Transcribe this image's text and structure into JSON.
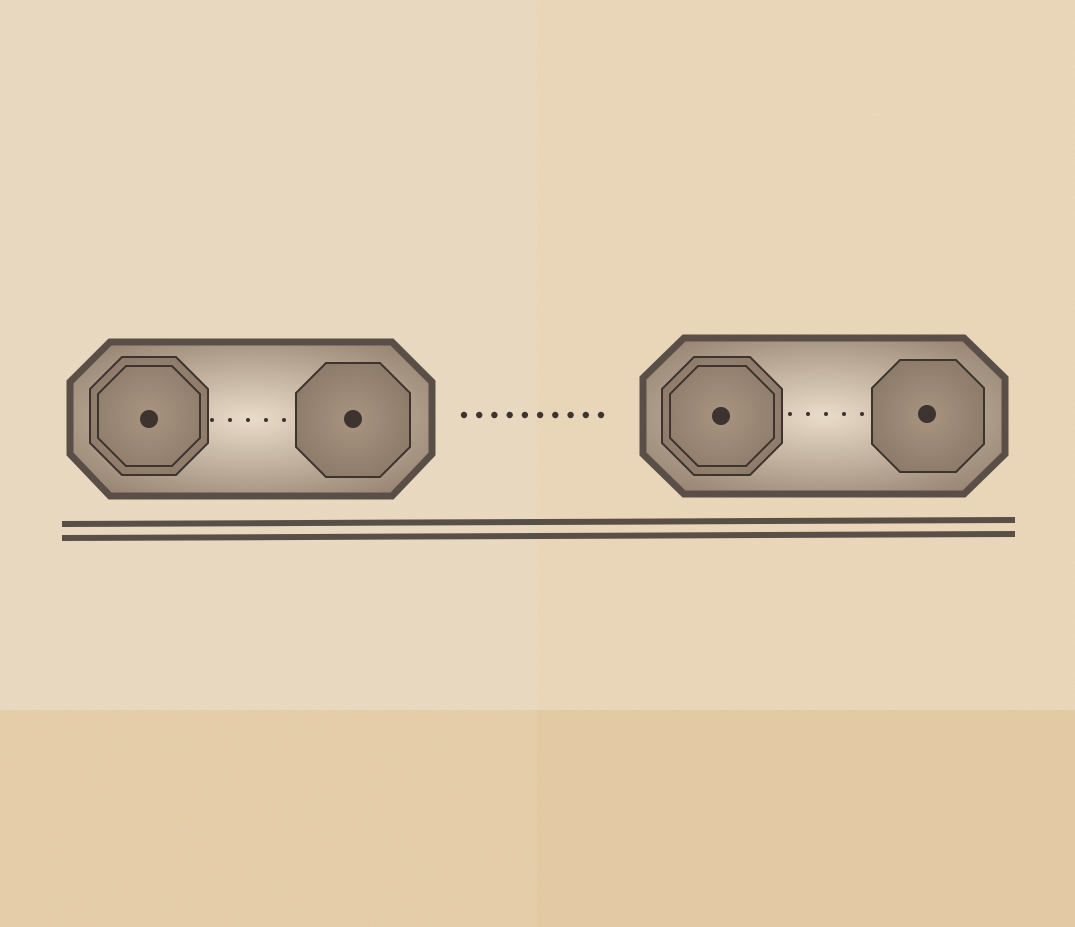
{
  "colors": {
    "paper_light": "#ecdcc4",
    "paper_warm": "#eed7b4",
    "paper_fold_dark": "#e6c9a0",
    "ink": "#5a4f47",
    "ink_dark": "#3d342f",
    "module_fill_edge": "#9a8775",
    "module_fill_center": "#e9dcc8",
    "octagon_fill_center": "#a89480",
    "octagon_fill_edge": "#8a7868"
  },
  "diagram": {
    "modules": [
      {
        "id": "left",
        "octagons": [
          "left-a",
          "left-b"
        ]
      },
      {
        "id": "right",
        "octagons": [
          "right-a",
          "right-b"
        ]
      }
    ],
    "inner_dots_per_gap": 5,
    "outer_dots": 10,
    "track_lines": 2
  }
}
